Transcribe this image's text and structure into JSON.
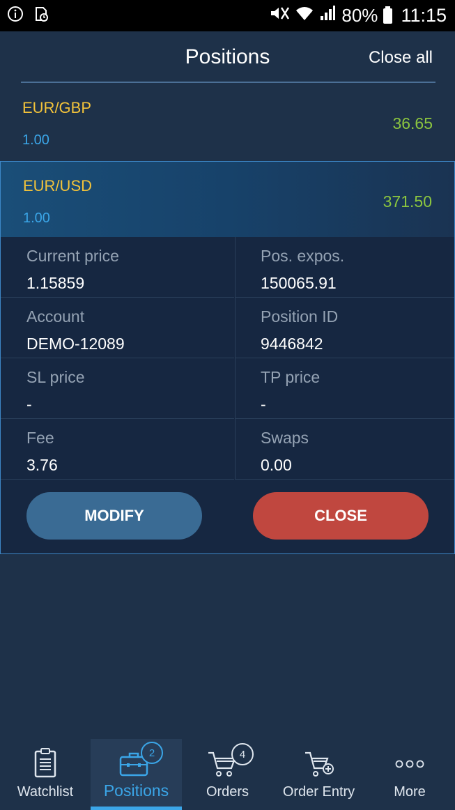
{
  "status_bar": {
    "battery": "80%",
    "time": "11:15"
  },
  "header": {
    "title": "Positions",
    "close_all": "Close all"
  },
  "positions": [
    {
      "symbol": "EUR/GBP",
      "quantity": "1.00",
      "pl": "36.65"
    },
    {
      "symbol": "EUR/USD",
      "quantity": "1.00",
      "pl": "371.50"
    }
  ],
  "details": {
    "current_price_label": "Current price",
    "current_price_value": "1.15859",
    "pos_expos_label": "Pos. expos.",
    "pos_expos_value": "150065.91",
    "account_label": "Account",
    "account_value": "DEMO-12089",
    "position_id_label": "Position ID",
    "position_id_value": "9446842",
    "sl_price_label": "SL price",
    "sl_price_value": "-",
    "tp_price_label": "TP price",
    "tp_price_value": "-",
    "fee_label": "Fee",
    "fee_value": "3.76",
    "swaps_label": "Swaps",
    "swaps_value": "0.00",
    "modify_button": "MODIFY",
    "close_button": "CLOSE"
  },
  "nav": {
    "watchlist": "Watchlist",
    "positions": "Positions",
    "positions_badge": "2",
    "orders": "Orders",
    "orders_badge": "4",
    "order_entry": "Order Entry",
    "more": "More"
  },
  "colors": {
    "background": "#1e3149",
    "symbol": "#f3c33a",
    "quantity": "#3ba6e8",
    "profit": "#8cc63f",
    "modify": "#3a6b94",
    "close": "#c0473f"
  }
}
